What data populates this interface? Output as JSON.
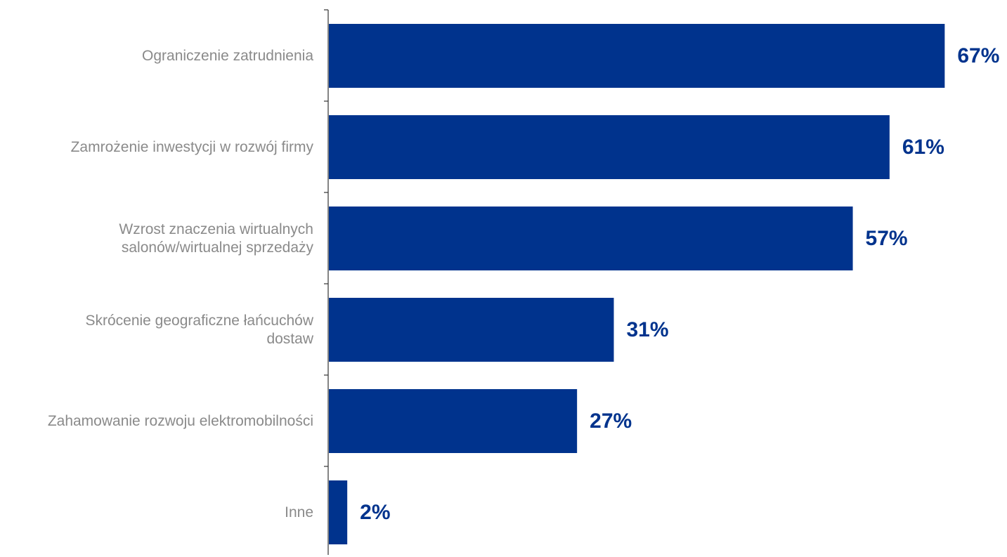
{
  "chart_data": {
    "type": "bar",
    "orientation": "horizontal",
    "categories": [
      [
        "Ograniczenie zatrudnienia"
      ],
      [
        "Zamrożenie inwestycji w rozwój firmy"
      ],
      [
        "Wzrost znaczenia wirtualnych",
        "salonów/wirtualnej sprzedaży"
      ],
      [
        "Skrócenie geograficzne łańcuchów",
        "dostaw"
      ],
      [
        "Zahamowanie rozwoju elektromobilności"
      ],
      [
        "Inne"
      ]
    ],
    "values": [
      67,
      61,
      57,
      31,
      27,
      2
    ],
    "value_labels": [
      "67%",
      "61%",
      "57%",
      "31%",
      "27%",
      "2%"
    ],
    "unit": "%",
    "xlim": [
      0,
      70
    ],
    "grid": false,
    "legend": "none",
    "colors": {
      "bar": "#00338d",
      "value_text": "#00338d",
      "category_text": "#8a8a8a",
      "axis": "#333333"
    }
  }
}
